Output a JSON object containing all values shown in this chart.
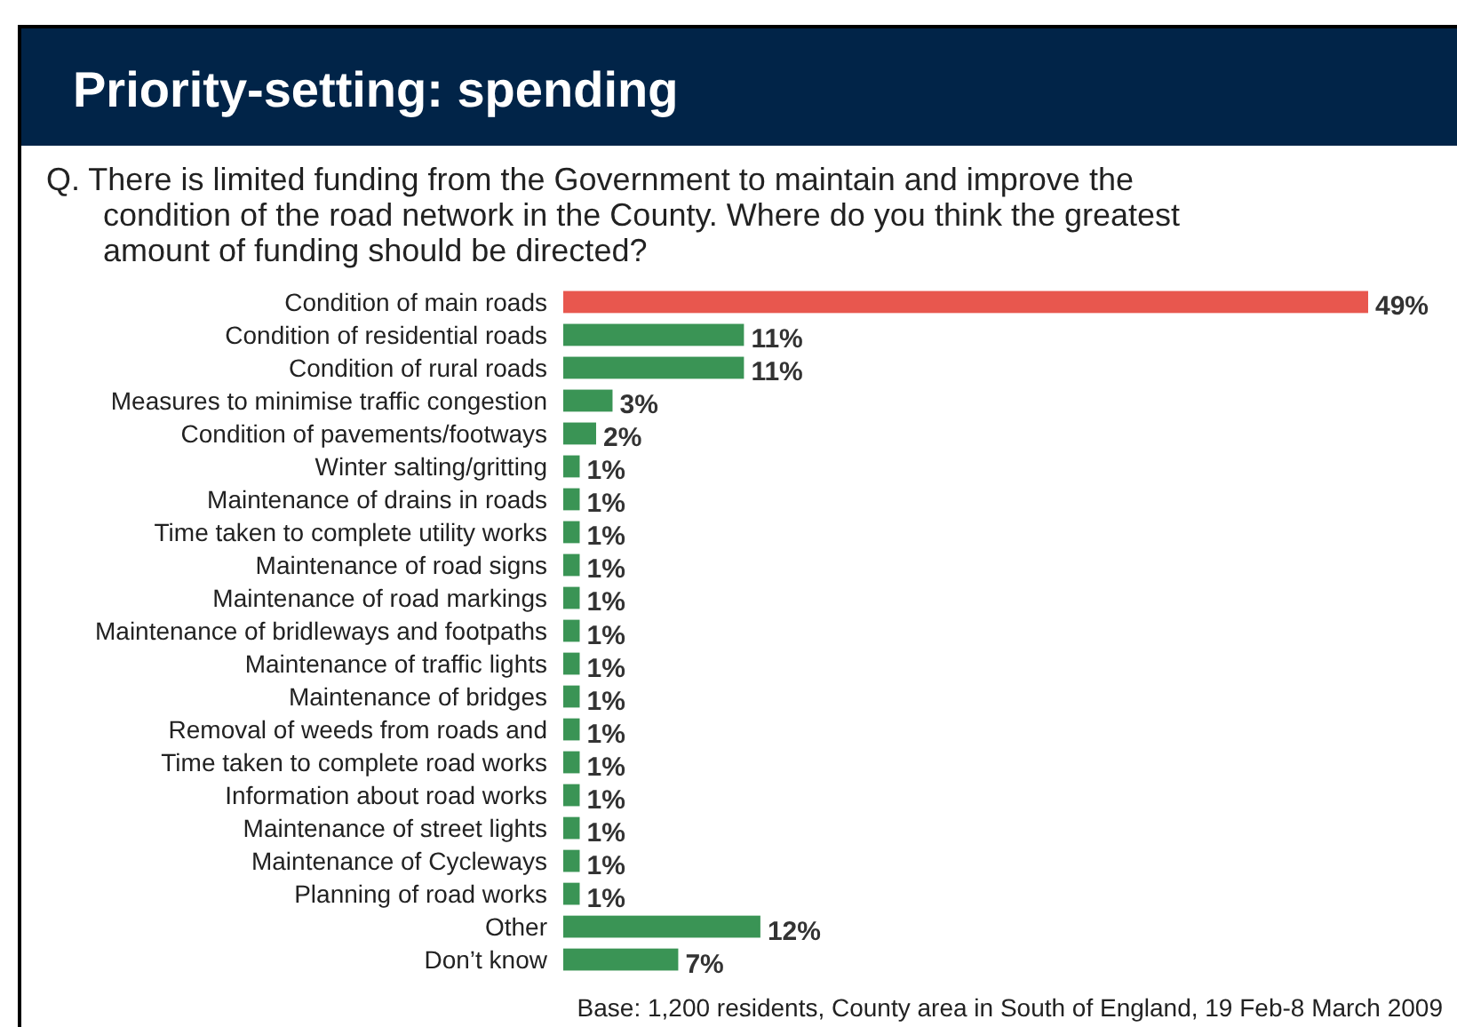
{
  "chart_data": {
    "type": "bar",
    "orientation": "horizontal",
    "title": "Priority-setting: spending",
    "subtitle": "Q. There is limited funding from the Government to maintain and improve the condition of the road network in the County. Where do you think the greatest amount of funding should be directed?",
    "categories": [
      "Condition of main roads",
      "Condition of residential roads",
      "Condition of rural roads",
      "Measures to minimise traffic congestion",
      "Condition of pavements/footways",
      "Winter salting/gritting",
      "Maintenance of drains in roads",
      "Time taken to complete utility works",
      "Maintenance of road signs",
      "Maintenance of road markings",
      "Maintenance of bridleways and footpaths",
      "Maintenance of traffic lights",
      "Maintenance of bridges",
      "Removal of weeds from roads and",
      "Time taken to complete road works",
      "Information about road works",
      "Maintenance of street lights",
      "Maintenance of Cycleways",
      "Planning of road works",
      "Other",
      "Don’t know"
    ],
    "values": [
      49,
      11,
      11,
      3,
      2,
      1,
      1,
      1,
      1,
      1,
      1,
      1,
      1,
      1,
      1,
      1,
      1,
      1,
      1,
      12,
      7
    ],
    "value_labels": [
      "49%",
      "11%",
      "11%",
      "3%",
      "2%",
      "1%",
      "1%",
      "1%",
      "1%",
      "1%",
      "1%",
      "1%",
      "1%",
      "1%",
      "1%",
      "1%",
      "1%",
      "1%",
      "1%",
      "12%",
      "7%"
    ],
    "colors": [
      "#e8574e",
      "#3a9455",
      "#3a9455",
      "#3a9455",
      "#3a9455",
      "#3a9455",
      "#3a9455",
      "#3a9455",
      "#3a9455",
      "#3a9455",
      "#3a9455",
      "#3a9455",
      "#3a9455",
      "#3a9455",
      "#3a9455",
      "#3a9455",
      "#3a9455",
      "#3a9455",
      "#3a9455",
      "#3a9455",
      "#3a9455"
    ],
    "annotations": [
      "Base: 1,200 residents, County area in South of England, 19 Feb-8 March 2009"
    ]
  }
}
